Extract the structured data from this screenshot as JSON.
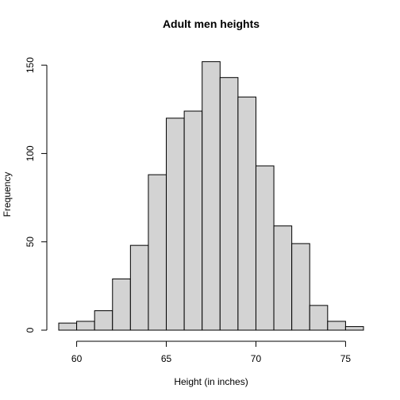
{
  "chart_data": {
    "type": "bar",
    "title": "Adult men heights",
    "xlabel": "Height (in inches)",
    "ylabel": "Frequency",
    "bin_edges": [
      59,
      60,
      61,
      62,
      63,
      64,
      65,
      66,
      67,
      68,
      69,
      70,
      71,
      72,
      73,
      74,
      75,
      76
    ],
    "values": [
      4,
      5,
      11,
      29,
      48,
      88,
      120,
      124,
      152,
      143,
      132,
      93,
      59,
      49,
      14,
      5,
      2
    ],
    "xlim": [
      59,
      76
    ],
    "ylim": [
      0,
      155
    ],
    "x_ticks": [
      "60",
      "65",
      "70",
      "75"
    ],
    "y_ticks": [
      "0",
      "50",
      "100",
      "150"
    ],
    "grid": false,
    "bar_fill": "#d3d3d3",
    "bar_stroke": "#000000"
  }
}
